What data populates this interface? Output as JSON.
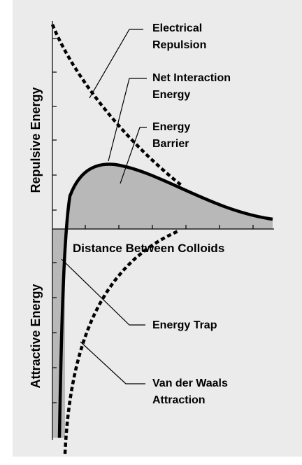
{
  "y_axis": {
    "upper": "Repulsive Energy",
    "lower": "Attractive Energy"
  },
  "x_axis": {
    "label": "Distance Between Colloids"
  },
  "labels": [
    {
      "lines": [
        "Electrical",
        "Repulsion"
      ]
    },
    {
      "lines": [
        "Net Interaction",
        "Energy"
      ]
    },
    {
      "lines": [
        "Energy",
        "Barrier"
      ]
    },
    {
      "lines": [
        "Energy Trap"
      ]
    },
    {
      "lines": [
        "Van der Waals",
        "Attraction"
      ]
    }
  ]
}
